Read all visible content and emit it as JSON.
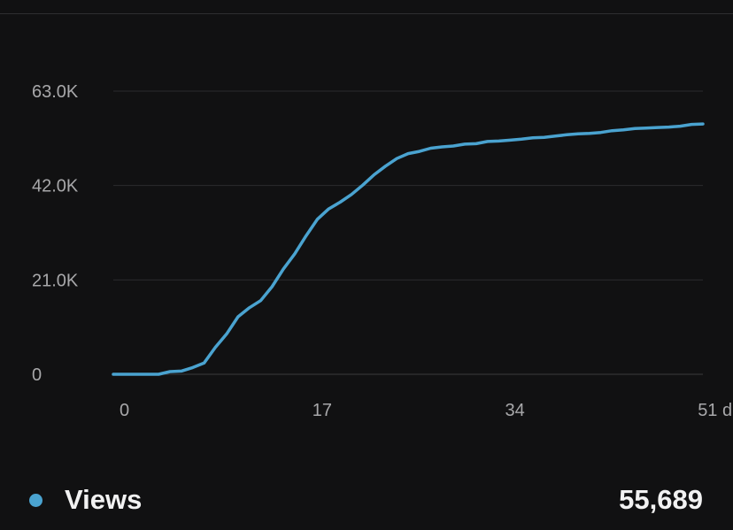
{
  "chart_data": {
    "type": "line",
    "y_ticks": [
      {
        "value": 0,
        "label": "0"
      },
      {
        "value": 21000,
        "label": "21.0K"
      },
      {
        "value": 42000,
        "label": "42.0K"
      },
      {
        "value": 63000,
        "label": "63.0K"
      }
    ],
    "x_ticks": [
      {
        "value": 0,
        "label": "0"
      },
      {
        "value": 17,
        "label": "17"
      },
      {
        "value": 34,
        "label": "34"
      },
      {
        "value": 51,
        "label": "51 days"
      }
    ],
    "xlim": [
      0,
      52
    ],
    "ylim": [
      0,
      63000
    ],
    "grid": true,
    "series": [
      {
        "name": "Views",
        "color": "#4aa3d0",
        "x": [
          0,
          1,
          2,
          3,
          4,
          5,
          6,
          7,
          8,
          9,
          10,
          11,
          12,
          13,
          14,
          15,
          16,
          17,
          18,
          19,
          20,
          21,
          22,
          23,
          24,
          25,
          26,
          27,
          28,
          29,
          30,
          31,
          32,
          33,
          34,
          35,
          36,
          37,
          38,
          39,
          40,
          41,
          42,
          43,
          44,
          45,
          46,
          47,
          48,
          49,
          50,
          51,
          52
        ],
        "y": [
          0,
          0,
          0,
          0,
          0,
          600,
          700,
          1500,
          2500,
          6000,
          9000,
          12800,
          14800,
          16400,
          19500,
          23400,
          26800,
          30800,
          34500,
          36800,
          38300,
          40000,
          42100,
          44400,
          46300,
          48000,
          49100,
          49600,
          50300,
          50600,
          50800,
          51200,
          51300,
          51800,
          51900,
          52100,
          52300,
          52600,
          52700,
          53000,
          53300,
          53500,
          53600,
          53800,
          54200,
          54400,
          54700,
          54800,
          54900,
          55000,
          55200,
          55600,
          55689
        ]
      }
    ]
  },
  "legend": {
    "label": "Views",
    "value": "55,689"
  }
}
